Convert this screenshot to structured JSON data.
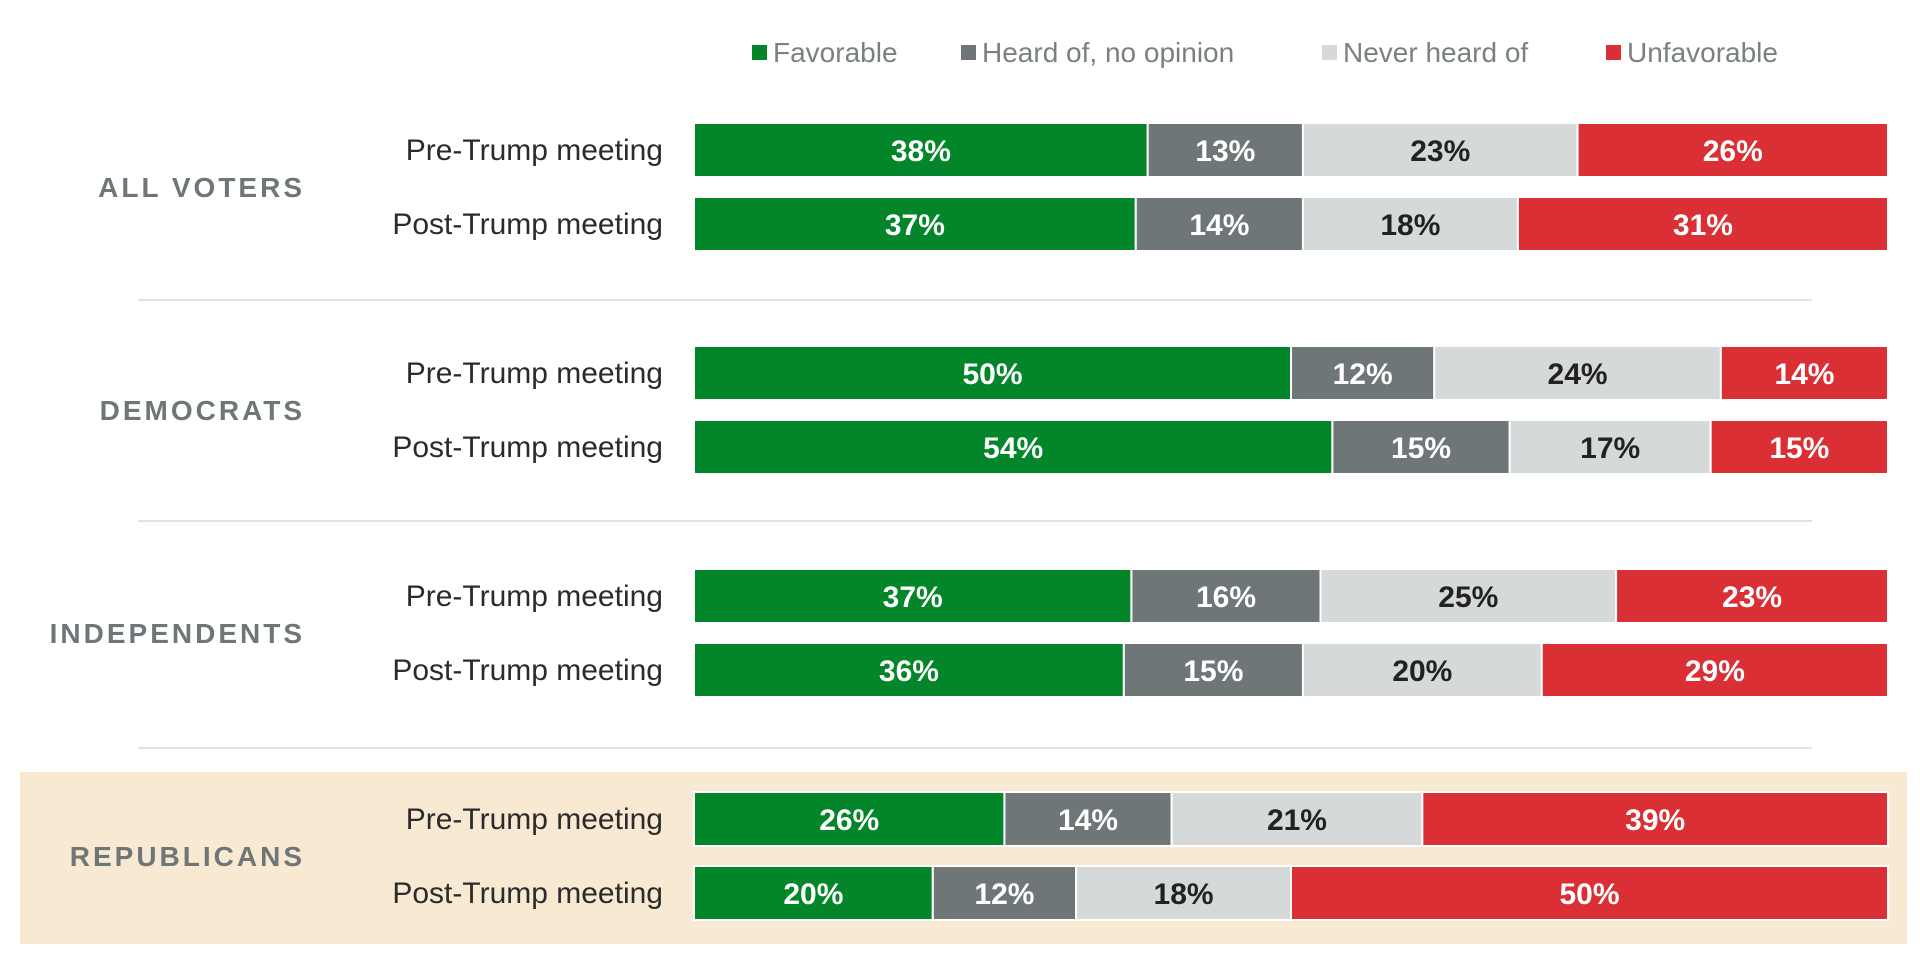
{
  "chart_data": {
    "type": "bar",
    "orientation": "horizontal",
    "stacked": true,
    "normalized": true,
    "legend": {
      "placement": "top",
      "entries": [
        "Favorable",
        "Heard of, no opinion",
        "Never heard of",
        "Unfavorable"
      ]
    },
    "colors": {
      "Favorable": "#038629",
      "Heard of, no opinion": "#6e7677",
      "Never heard of": "#d6d9da",
      "Unfavorable": "#d92f35",
      "highlight_background": "#f8e9d2"
    },
    "label_colors": {
      "Favorable": "#ffffff",
      "Heard of, no opinion": "#ffffff",
      "Never heard of": "#222222",
      "Unfavorable": "#ffffff"
    },
    "groups": [
      {
        "name": "ALL VOTERS",
        "highlighted": false,
        "rows": [
          {
            "label": "Pre-Trump meeting",
            "values": [
              38,
              13,
              23,
              26
            ],
            "value_labels": [
              "38%",
              "13%",
              "23%",
              "26%"
            ]
          },
          {
            "label": "Post-Trump meeting",
            "values": [
              37,
              14,
              18,
              31
            ],
            "value_labels": [
              "37%",
              "14%",
              "18%",
              "31%"
            ]
          }
        ]
      },
      {
        "name": "DEMOCRATS",
        "highlighted": false,
        "rows": [
          {
            "label": "Pre-Trump meeting",
            "values": [
              50,
              12,
              24,
              14
            ],
            "value_labels": [
              "50%",
              "12%",
              "24%",
              "14%"
            ]
          },
          {
            "label": "Post-Trump meeting",
            "values": [
              54,
              15,
              17,
              15
            ],
            "value_labels": [
              "54%",
              "15%",
              "17%",
              "15%"
            ]
          }
        ]
      },
      {
        "name": "INDEPENDENTS",
        "highlighted": false,
        "rows": [
          {
            "label": "Pre-Trump meeting",
            "values": [
              37,
              16,
              25,
              23
            ],
            "value_labels": [
              "37%",
              "16%",
              "25%",
              "23%"
            ]
          },
          {
            "label": "Post-Trump meeting",
            "values": [
              36,
              15,
              20,
              29
            ],
            "value_labels": [
              "36%",
              "15%",
              "20%",
              "29%"
            ]
          }
        ]
      },
      {
        "name": "REPUBLICANS",
        "highlighted": true,
        "rows": [
          {
            "label": "Pre-Trump meeting",
            "values": [
              26,
              14,
              21,
              39
            ],
            "value_labels": [
              "26%",
              "14%",
              "21%",
              "39%"
            ]
          },
          {
            "label": "Post-Trump meeting",
            "values": [
              20,
              12,
              18,
              50
            ],
            "value_labels": [
              "20%",
              "12%",
              "18%",
              "50%"
            ]
          }
        ]
      }
    ]
  }
}
